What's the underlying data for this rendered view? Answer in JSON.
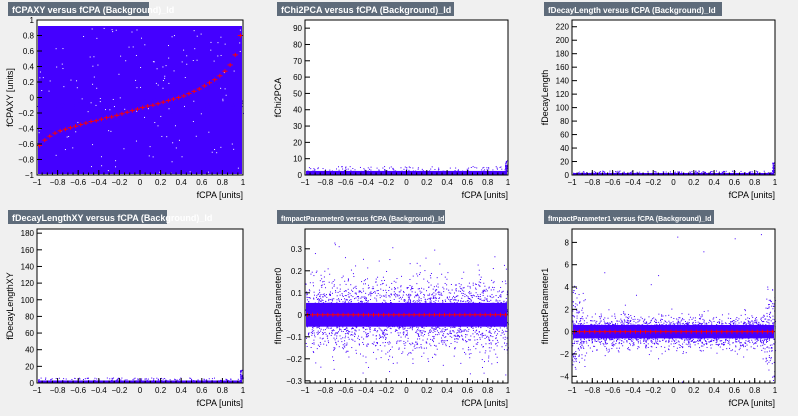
{
  "colors": {
    "background": "#f0f0f0",
    "plot_bg": "#ffffff",
    "frame": "#000000",
    "title_bg": "#5e6b7a",
    "title_text": "#ffffff",
    "scatter": "#4400ff",
    "profile": "#ff0000"
  },
  "chart_data": [
    {
      "type": "scatter",
      "title": "fCPAXY versus fCPA (Background)_Id",
      "xlabel": "fCPA  [units]",
      "ylabel": "fCPAXY  [units]",
      "xlim": [
        -1,
        1
      ],
      "ylim": [
        -1,
        1
      ],
      "xticks": [
        "−1",
        "−0.8",
        "−0.6",
        "−0.4",
        "−0.2",
        "0",
        "0.2",
        "0.4",
        "0.6",
        "0.8",
        "1"
      ],
      "yticks": [
        "−1",
        "−0.8",
        "−0.6",
        "−0.4",
        "−0.2",
        "0",
        "0.2",
        "0.4",
        "0.6",
        "0.8",
        "1"
      ],
      "density": "full",
      "profile_x": [
        -0.975,
        -0.925,
        -0.875,
        -0.825,
        -0.775,
        -0.725,
        -0.675,
        -0.625,
        -0.575,
        -0.525,
        -0.475,
        -0.425,
        -0.375,
        -0.325,
        -0.275,
        -0.225,
        -0.175,
        -0.125,
        -0.075,
        -0.025,
        0.025,
        0.075,
        0.125,
        0.175,
        0.225,
        0.275,
        0.325,
        0.375,
        0.425,
        0.475,
        0.525,
        0.575,
        0.625,
        0.675,
        0.725,
        0.775,
        0.825,
        0.875,
        0.925,
        0.975
      ],
      "profile_y": [
        -0.62,
        -0.55,
        -0.5,
        -0.46,
        -0.43,
        -0.41,
        -0.39,
        -0.37,
        -0.35,
        -0.33,
        -0.31,
        -0.3,
        -0.28,
        -0.26,
        -0.25,
        -0.23,
        -0.21,
        -0.19,
        -0.17,
        -0.15,
        -0.13,
        -0.11,
        -0.1,
        -0.08,
        -0.06,
        -0.04,
        -0.02,
        0.0,
        0.02,
        0.05,
        0.08,
        0.11,
        0.15,
        0.19,
        0.23,
        0.28,
        0.34,
        0.42,
        0.55,
        0.8
      ]
    },
    {
      "type": "scatter",
      "title": "fChi2PCA versus fCPA (Background)_Id",
      "xlabel": "fCPA  [units]",
      "ylabel": "fChi2PCA",
      "xlim": [
        -1,
        1
      ],
      "ylim": [
        0,
        95
      ],
      "xticks": [
        "−1",
        "−0.8",
        "−0.6",
        "−0.4",
        "−0.2",
        "0",
        "0.2",
        "0.4",
        "0.6",
        "0.8",
        "1"
      ],
      "yticks": [
        "0",
        "10",
        "20",
        "30",
        "40",
        "50",
        "60",
        "70",
        "80",
        "90"
      ],
      "density": "floor",
      "band_y": [
        0,
        2.5
      ],
      "profile_x": [],
      "profile_y": []
    },
    {
      "type": "scatter",
      "title": "fDecayLength versus fCPA (Background)_Id",
      "xlabel": "fCPA  [units]",
      "ylabel": "fDecayLength",
      "xlim": [
        -1,
        1
      ],
      "ylim": [
        0,
        230
      ],
      "xticks": [
        "−1",
        "−0.8",
        "−0.6",
        "−0.4",
        "−0.2",
        "0",
        "0.2",
        "0.4",
        "0.6",
        "0.8",
        "1"
      ],
      "yticks": [
        "0",
        "20",
        "40",
        "60",
        "80",
        "100",
        "120",
        "140",
        "160",
        "180",
        "200",
        "220"
      ],
      "density": "floor",
      "band_y": [
        0,
        3
      ],
      "profile_x": [],
      "profile_y": []
    },
    {
      "type": "scatter",
      "title": "fDecayLengthXY versus fCPA (Background)_Id",
      "xlabel": "fCPA  [units]",
      "ylabel": "fDecayLengthXY",
      "xlim": [
        -1,
        1
      ],
      "ylim": [
        0,
        185
      ],
      "xticks": [
        "−1",
        "−0.8",
        "−0.6",
        "−0.4",
        "−0.2",
        "0",
        "0.2",
        "0.4",
        "0.6",
        "0.8",
        "1"
      ],
      "yticks": [
        "0",
        "20",
        "40",
        "60",
        "80",
        "100",
        "120",
        "140",
        "160",
        "180"
      ],
      "density": "floor",
      "band_y": [
        0,
        3
      ],
      "profile_x": [],
      "profile_y": []
    },
    {
      "type": "scatter",
      "title": "fImpactParameter0 versus fCPA (Background)_Id",
      "xlabel": "fCPA  [units]",
      "ylabel": "fImpactParameter0",
      "xlim": [
        -1,
        1
      ],
      "ylim": [
        -0.31,
        0.39
      ],
      "xticks": [
        "−1",
        "−0.8",
        "−0.6",
        "−0.4",
        "−0.2",
        "0",
        "0.2",
        "0.4",
        "0.6",
        "0.8",
        "1"
      ],
      "yticks": [
        "−0.3",
        "−0.2",
        "−0.1",
        "0",
        "0.1",
        "0.2",
        "0.3"
      ],
      "density": "band",
      "band_y": [
        -0.09,
        0.09
      ],
      "profile_x": [
        -0.975,
        -0.925,
        -0.875,
        -0.825,
        -0.775,
        -0.725,
        -0.675,
        -0.625,
        -0.575,
        -0.525,
        -0.475,
        -0.425,
        -0.375,
        -0.325,
        -0.275,
        -0.225,
        -0.175,
        -0.125,
        -0.075,
        -0.025,
        0.025,
        0.075,
        0.125,
        0.175,
        0.225,
        0.275,
        0.325,
        0.375,
        0.425,
        0.475,
        0.525,
        0.575,
        0.625,
        0.675,
        0.725,
        0.775,
        0.825,
        0.875,
        0.925,
        0.975
      ],
      "profile_y": [
        0,
        0,
        0,
        0,
        0,
        0,
        0,
        0,
        0,
        0,
        0,
        0,
        0,
        0,
        0,
        0,
        0,
        0,
        0,
        0,
        0,
        0,
        0,
        0,
        0,
        0,
        0,
        0,
        0,
        0,
        0,
        0,
        0,
        0,
        0,
        0,
        0,
        0,
        0,
        0
      ]
    },
    {
      "type": "scatter",
      "title": "fImpactParameter1 versus fCPA (Background)_Id",
      "xlabel": "fCPA  [units]",
      "ylabel": "fImpactParameter1",
      "xlim": [
        -1,
        1
      ],
      "ylim": [
        -4.6,
        9.2
      ],
      "xticks": [
        "−1",
        "−0.8",
        "−0.6",
        "−0.4",
        "−0.2",
        "0",
        "0.2",
        "0.4",
        "0.6",
        "0.8",
        "1"
      ],
      "yticks": [
        "−4",
        "−2",
        "0",
        "2",
        "4",
        "6",
        "8"
      ],
      "density": "band",
      "band_y": [
        -1.0,
        1.0
      ],
      "profile_x": [
        -0.975,
        -0.925,
        -0.875,
        -0.825,
        -0.775,
        -0.725,
        -0.675,
        -0.625,
        -0.575,
        -0.525,
        -0.475,
        -0.425,
        -0.375,
        -0.325,
        -0.275,
        -0.225,
        -0.175,
        -0.125,
        -0.075,
        -0.025,
        0.025,
        0.075,
        0.125,
        0.175,
        0.225,
        0.275,
        0.325,
        0.375,
        0.425,
        0.475,
        0.525,
        0.575,
        0.625,
        0.675,
        0.725,
        0.775,
        0.825,
        0.875,
        0.925,
        0.975
      ],
      "profile_y": [
        0,
        0,
        0,
        0,
        0,
        0,
        0,
        0,
        0,
        0,
        0,
        0,
        0,
        0,
        0,
        0,
        0,
        0,
        0,
        0,
        0,
        0,
        0,
        0,
        0,
        0,
        0,
        0,
        0,
        0,
        0,
        0,
        0,
        0,
        0,
        0,
        0,
        0,
        0,
        0
      ]
    }
  ]
}
